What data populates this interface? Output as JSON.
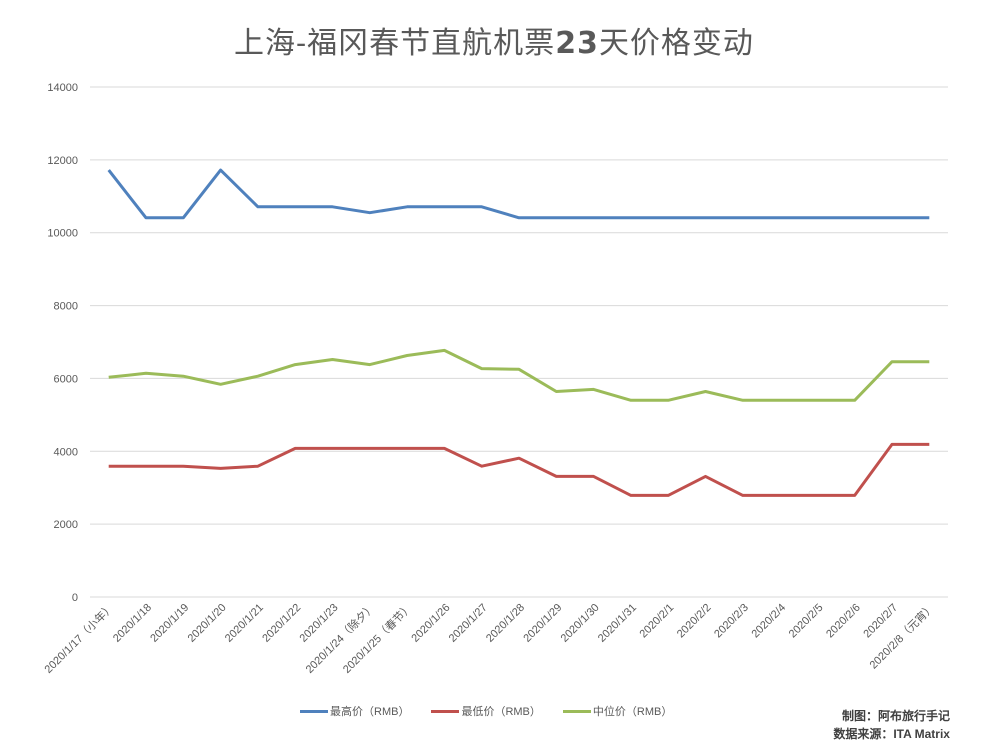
{
  "chart_data": {
    "type": "line",
    "title": "上海-福冈春节直航机票23天价格变动",
    "xlabel": "",
    "ylabel": "",
    "ylim": [
      0,
      14000
    ],
    "yticks": [
      0,
      2000,
      4000,
      6000,
      8000,
      10000,
      12000,
      14000
    ],
    "grid": true,
    "legend_position": "bottom",
    "categories": [
      "2020/1/17（小年）",
      "2020/1/18",
      "2020/1/19",
      "2020/1/20",
      "2020/1/21",
      "2020/1/22",
      "2020/1/23",
      "2020/1/24（除夕）",
      "2020/1/25（春节）",
      "2020/1/26",
      "2020/1/27",
      "2020/1/28",
      "2020/1/29",
      "2020/1/30",
      "2020/1/31",
      "2020/2/1",
      "2020/2/2",
      "2020/2/3",
      "2020/2/4",
      "2020/2/5",
      "2020/2/6",
      "2020/2/7",
      "2020/2/8（元宵）"
    ],
    "series": [
      {
        "name": "最高价（RMB）",
        "color": "#4F81BD",
        "values": [
          11720,
          10410,
          10410,
          11720,
          10710,
          10710,
          10710,
          10550,
          10710,
          10710,
          10710,
          10410,
          10410,
          10410,
          10410,
          10410,
          10410,
          10410,
          10410,
          10410,
          10410,
          10410,
          10410
        ]
      },
      {
        "name": "最低价（RMB）",
        "color": "#C0504D",
        "values": [
          3590,
          3590,
          3590,
          3530,
          3590,
          4080,
          4080,
          4080,
          4080,
          4080,
          3590,
          3810,
          3310,
          3310,
          2790,
          2790,
          3310,
          2790,
          2790,
          2790,
          2790,
          4190,
          4190
        ]
      },
      {
        "name": "中位价（RMB）",
        "color": "#9BBB59",
        "values": [
          6030,
          6140,
          6060,
          5840,
          6060,
          6380,
          6520,
          6380,
          6630,
          6770,
          6270,
          6250,
          5640,
          5700,
          5400,
          5400,
          5640,
          5400,
          5400,
          5400,
          5400,
          6460,
          6460
        ]
      }
    ]
  },
  "title": {
    "prefix": "上海-福冈春节直航机票",
    "number": "23",
    "suffix": "天价格变动"
  },
  "legend": [
    {
      "label": "最高价（RMB）",
      "color": "#4F81BD"
    },
    {
      "label": "最低价（RMB）",
      "color": "#C0504D"
    },
    {
      "label": "中位价（RMB）",
      "color": "#9BBB59"
    }
  ],
  "credits": {
    "author": "制图：阿布旅行手记",
    "source": "数据来源：ITA Matrix"
  }
}
